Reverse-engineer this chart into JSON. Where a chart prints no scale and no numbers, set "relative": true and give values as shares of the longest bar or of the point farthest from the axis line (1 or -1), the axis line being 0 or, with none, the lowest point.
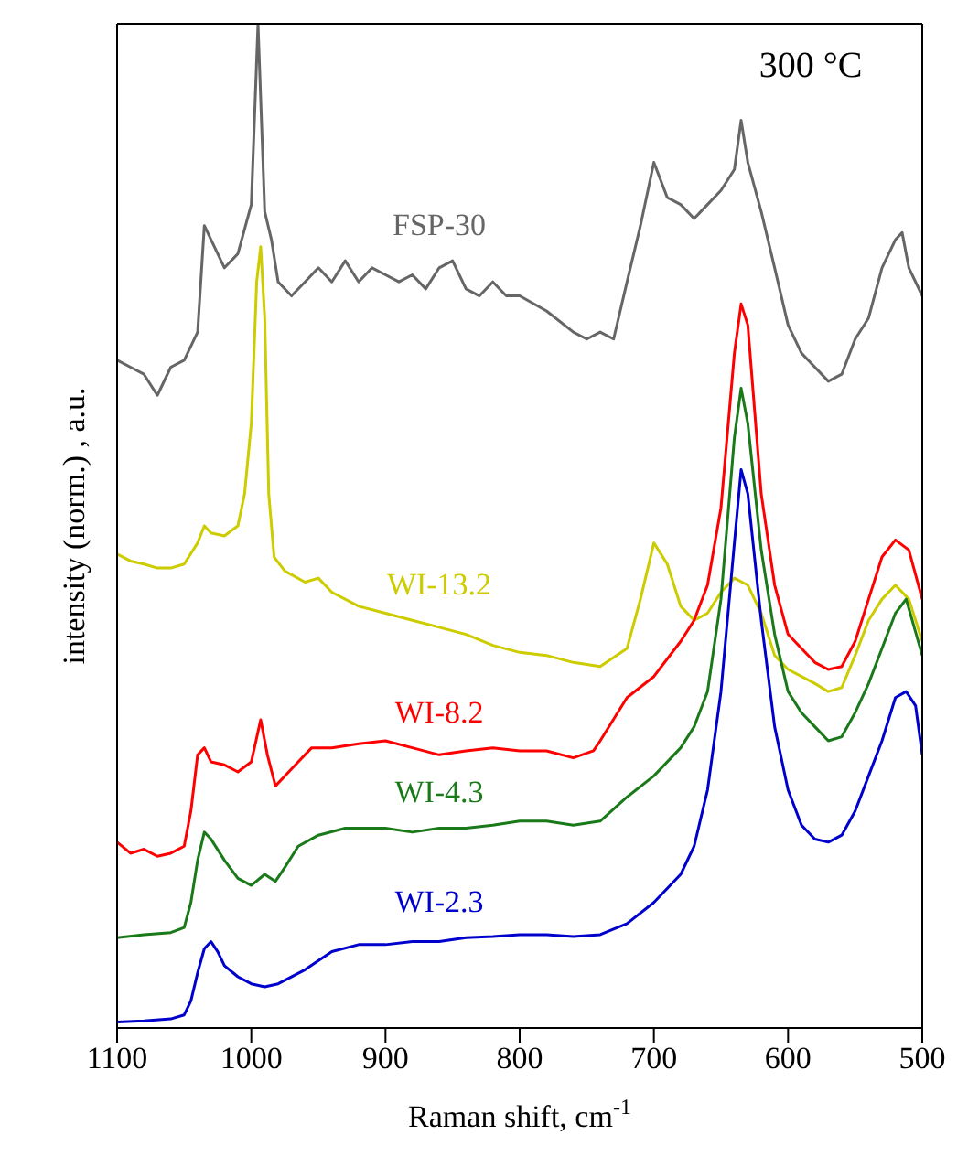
{
  "chart_data": {
    "type": "line",
    "relative": true,
    "xlabel": "Raman shift, cm$^{-1}$",
    "ylabel": "intensity (norm.) , a.u.",
    "annotations": [
      "300 °C"
    ],
    "xlim": [
      1100,
      500
    ],
    "xticks": [
      1100,
      1000,
      900,
      800,
      700,
      600,
      500
    ],
    "legend": false,
    "marker": "none",
    "line_style": "solid",
    "series": [
      {
        "name": "FSP-30",
        "color": "#666666",
        "x": [
          1100,
          1090,
          1080,
          1070,
          1060,
          1050,
          1040,
          1035,
          1030,
          1020,
          1010,
          1000,
          995,
          990,
          985,
          980,
          970,
          960,
          950,
          940,
          930,
          920,
          910,
          900,
          890,
          880,
          870,
          860,
          850,
          840,
          830,
          820,
          810,
          800,
          780,
          760,
          750,
          740,
          730,
          720,
          710,
          700,
          690,
          680,
          670,
          660,
          650,
          640,
          635,
          630,
          620,
          610,
          600,
          590,
          580,
          570,
          560,
          550,
          540,
          530,
          520,
          515,
          510,
          500
        ],
        "values": [
          0.665,
          0.658,
          0.651,
          0.63,
          0.658,
          0.665,
          0.693,
          0.799,
          0.785,
          0.757,
          0.771,
          0.82,
          1,
          0.813,
          0.785,
          0.743,
          0.729,
          0.743,
          0.757,
          0.743,
          0.764,
          0.743,
          0.757,
          0.75,
          0.743,
          0.75,
          0.736,
          0.757,
          0.764,
          0.736,
          0.729,
          0.743,
          0.729,
          0.729,
          0.714,
          0.693,
          0.686,
          0.693,
          0.686,
          0.743,
          0.799,
          0.862,
          0.827,
          0.82,
          0.806,
          0.82,
          0.834,
          0.855,
          0.904,
          0.862,
          0.813,
          0.757,
          0.7,
          0.672,
          0.658,
          0.644,
          0.651,
          0.686,
          0.707,
          0.757,
          0.785,
          0.792,
          0.757,
          0.729
        ]
      },
      {
        "name": "WI-13.2",
        "color": "#cccc00",
        "x": [
          1100,
          1090,
          1080,
          1070,
          1060,
          1050,
          1040,
          1035,
          1030,
          1020,
          1010,
          1005,
          1000,
          996,
          993,
          990,
          987,
          983,
          975,
          960,
          950,
          940,
          920,
          900,
          880,
          860,
          840,
          820,
          800,
          780,
          760,
          740,
          720,
          710,
          700,
          690,
          680,
          670,
          660,
          650,
          640,
          630,
          620,
          610,
          600,
          590,
          580,
          570,
          560,
          550,
          540,
          530,
          520,
          510,
          500
        ],
        "values": [
          0.472,
          0.465,
          0.462,
          0.458,
          0.458,
          0.462,
          0.483,
          0.5,
          0.493,
          0.49,
          0.5,
          0.532,
          0.602,
          0.743,
          0.778,
          0.707,
          0.532,
          0.469,
          0.455,
          0.444,
          0.448,
          0.434,
          0.42,
          0.413,
          0.406,
          0.399,
          0.392,
          0.381,
          0.374,
          0.371,
          0.364,
          0.36,
          0.378,
          0.427,
          0.483,
          0.462,
          0.42,
          0.406,
          0.413,
          0.434,
          0.448,
          0.441,
          0.413,
          0.371,
          0.357,
          0.35,
          0.343,
          0.335,
          0.339,
          0.371,
          0.406,
          0.427,
          0.441,
          0.427,
          0.385
        ]
      },
      {
        "name": "WI-8.2",
        "color": "#ff0000",
        "x": [
          1100,
          1090,
          1080,
          1070,
          1060,
          1050,
          1045,
          1040,
          1035,
          1030,
          1020,
          1010,
          1000,
          993,
          988,
          982,
          975,
          965,
          955,
          940,
          920,
          900,
          880,
          860,
          840,
          820,
          800,
          780,
          760,
          745,
          740,
          720,
          700,
          680,
          670,
          660,
          650,
          640,
          635,
          630,
          620,
          610,
          600,
          590,
          580,
          570,
          560,
          550,
          540,
          530,
          520,
          510,
          500
        ],
        "values": [
          0.185,
          0.174,
          0.178,
          0.171,
          0.174,
          0.181,
          0.216,
          0.272,
          0.279,
          0.265,
          0.262,
          0.255,
          0.265,
          0.307,
          0.272,
          0.241,
          0.251,
          0.265,
          0.279,
          0.279,
          0.283,
          0.286,
          0.279,
          0.272,
          0.276,
          0.279,
          0.276,
          0.276,
          0.269,
          0.276,
          0.286,
          0.329,
          0.35,
          0.385,
          0.406,
          0.441,
          0.518,
          0.672,
          0.721,
          0.7,
          0.532,
          0.441,
          0.392,
          0.378,
          0.364,
          0.357,
          0.36,
          0.385,
          0.427,
          0.469,
          0.486,
          0.476,
          0.427
        ]
      },
      {
        "name": "WI-4.3",
        "color": "#1a7a1a",
        "x": [
          1100,
          1080,
          1060,
          1050,
          1045,
          1040,
          1035,
          1030,
          1020,
          1010,
          1000,
          990,
          982,
          975,
          965,
          950,
          930,
          900,
          880,
          860,
          840,
          820,
          800,
          780,
          760,
          740,
          720,
          700,
          680,
          670,
          660,
          650,
          640,
          635,
          630,
          620,
          610,
          600,
          590,
          580,
          570,
          560,
          550,
          540,
          530,
          520,
          512,
          500
        ],
        "values": [
          0.09,
          0.093,
          0.095,
          0.1,
          0.125,
          0.167,
          0.195,
          0.188,
          0.167,
          0.149,
          0.142,
          0.153,
          0.146,
          0.16,
          0.181,
          0.192,
          0.199,
          0.199,
          0.195,
          0.199,
          0.199,
          0.202,
          0.206,
          0.206,
          0.202,
          0.206,
          0.23,
          0.251,
          0.279,
          0.3,
          0.335,
          0.427,
          0.588,
          0.637,
          0.602,
          0.476,
          0.392,
          0.335,
          0.314,
          0.3,
          0.286,
          0.29,
          0.314,
          0.343,
          0.378,
          0.413,
          0.427,
          0.371
        ]
      },
      {
        "name": "WI-2.3",
        "color": "#0000cc",
        "x": [
          1100,
          1080,
          1060,
          1050,
          1045,
          1040,
          1035,
          1030,
          1025,
          1020,
          1010,
          1000,
          990,
          980,
          960,
          940,
          920,
          900,
          880,
          860,
          840,
          820,
          800,
          780,
          760,
          740,
          720,
          700,
          680,
          670,
          660,
          650,
          640,
          635,
          630,
          620,
          610,
          600,
          590,
          580,
          570,
          560,
          550,
          540,
          530,
          520,
          512,
          505,
          500
        ],
        "values": [
          0.006,
          0.007,
          0.009,
          0.013,
          0.027,
          0.055,
          0.079,
          0.086,
          0.076,
          0.062,
          0.051,
          0.044,
          0.041,
          0.044,
          0.058,
          0.076,
          0.083,
          0.083,
          0.086,
          0.086,
          0.09,
          0.091,
          0.093,
          0.093,
          0.091,
          0.093,
          0.104,
          0.125,
          0.153,
          0.181,
          0.237,
          0.335,
          0.483,
          0.556,
          0.532,
          0.406,
          0.3,
          0.237,
          0.202,
          0.188,
          0.185,
          0.192,
          0.216,
          0.251,
          0.286,
          0.329,
          0.335,
          0.321,
          0.272
        ]
      }
    ]
  }
}
